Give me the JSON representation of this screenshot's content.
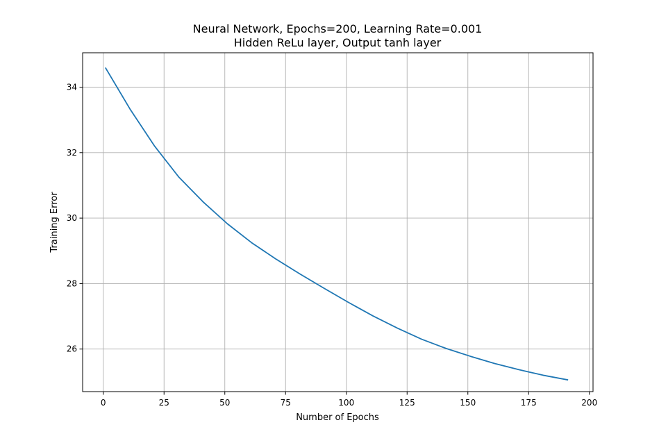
{
  "chart_data": {
    "type": "line",
    "title": "Neural Network, Epochs=200, Learning Rate=0.001",
    "subtitle": "Hidden ReLu layer, Output tanh layer",
    "xlabel": "Number of Epochs",
    "ylabel": "Training Error",
    "xlim": [
      -8.5,
      201.5
    ],
    "ylim": [
      24.7,
      35.05
    ],
    "xticks": [
      0,
      25,
      50,
      75,
      100,
      125,
      150,
      175,
      200
    ],
    "yticks": [
      26,
      28,
      30,
      32,
      34
    ],
    "grid": true,
    "series": [
      {
        "color": "#1f77b4",
        "x": [
          1,
          11,
          21,
          31,
          41,
          51,
          61,
          71,
          81,
          91,
          101,
          111,
          121,
          131,
          141,
          151,
          161,
          171,
          181,
          191
        ],
        "y": [
          34.58,
          33.33,
          32.21,
          31.26,
          30.5,
          29.83,
          29.25,
          28.75,
          28.29,
          27.85,
          27.42,
          27.01,
          26.64,
          26.3,
          26.02,
          25.78,
          25.56,
          25.37,
          25.2,
          25.06
        ]
      }
    ]
  }
}
